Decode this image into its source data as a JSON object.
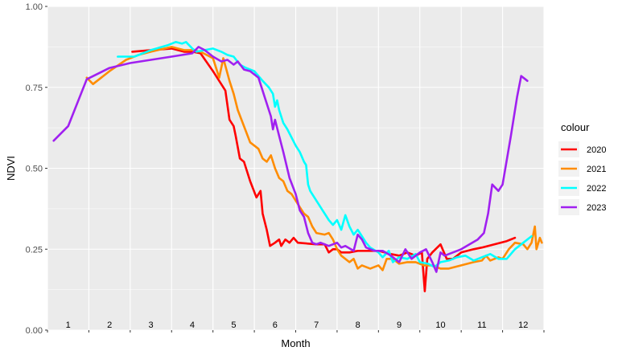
{
  "chart_data": {
    "type": "line",
    "xlabel": "Month",
    "ylabel": "NDVI",
    "ylim": [
      0,
      1
    ],
    "xlim": [
      0.5,
      12.5
    ],
    "y_ticks": [
      "0.00",
      "0.25",
      "0.50",
      "0.75",
      "1.00"
    ],
    "y_tick_values": [
      0,
      0.25,
      0.5,
      0.75,
      1.0
    ],
    "month_labels": [
      "1",
      "2",
      "3",
      "4",
      "5",
      "6",
      "7",
      "8",
      "9",
      "10",
      "11",
      "12"
    ],
    "month_label_values": [
      1,
      2,
      3,
      4,
      5,
      6,
      7,
      8,
      9,
      10,
      11,
      12
    ],
    "grid": true,
    "legend": {
      "title": "colour",
      "placement": "right"
    },
    "series": [
      {
        "name": "2020",
        "color": "#ff0000",
        "points": [
          [
            2.55,
            0.86
          ],
          [
            3.0,
            0.865
          ],
          [
            3.5,
            0.87
          ],
          [
            3.8,
            0.86
          ],
          [
            4.0,
            0.86
          ],
          [
            4.2,
            0.855
          ],
          [
            4.5,
            0.8
          ],
          [
            4.8,
            0.74
          ],
          [
            4.9,
            0.65
          ],
          [
            5.0,
            0.63
          ],
          [
            5.05,
            0.6
          ],
          [
            5.15,
            0.53
          ],
          [
            5.25,
            0.52
          ],
          [
            5.4,
            0.46
          ],
          [
            5.55,
            0.41
          ],
          [
            5.65,
            0.43
          ],
          [
            5.7,
            0.36
          ],
          [
            5.8,
            0.31
          ],
          [
            5.88,
            0.26
          ],
          [
            6.0,
            0.27
          ],
          [
            6.1,
            0.28
          ],
          [
            6.15,
            0.26
          ],
          [
            6.25,
            0.28
          ],
          [
            6.35,
            0.27
          ],
          [
            6.45,
            0.285
          ],
          [
            6.55,
            0.27
          ],
          [
            7.0,
            0.265
          ],
          [
            7.2,
            0.265
          ],
          [
            7.3,
            0.24
          ],
          [
            7.4,
            0.25
          ],
          [
            7.5,
            0.25
          ],
          [
            7.6,
            0.24
          ],
          [
            7.8,
            0.24
          ],
          [
            8.0,
            0.245
          ],
          [
            8.5,
            0.245
          ],
          [
            8.8,
            0.235
          ],
          [
            9.0,
            0.23
          ],
          [
            9.2,
            0.24
          ],
          [
            9.4,
            0.23
          ],
          [
            9.55,
            0.24
          ],
          [
            9.62,
            0.12
          ],
          [
            9.68,
            0.22
          ],
          [
            9.8,
            0.24
          ],
          [
            10.0,
            0.265
          ],
          [
            10.05,
            0.25
          ],
          [
            10.15,
            0.22
          ],
          [
            10.3,
            0.22
          ],
          [
            10.5,
            0.24
          ],
          [
            10.8,
            0.25
          ],
          [
            11.0,
            0.255
          ],
          [
            11.3,
            0.265
          ],
          [
            11.6,
            0.275
          ],
          [
            11.8,
            0.285
          ]
        ]
      },
      {
        "name": "2021",
        "color": "#ff8c00",
        "points": [
          [
            1.45,
            0.78
          ],
          [
            1.6,
            0.76
          ],
          [
            1.8,
            0.78
          ],
          [
            2.0,
            0.8
          ],
          [
            2.4,
            0.835
          ],
          [
            2.7,
            0.85
          ],
          [
            3.0,
            0.86
          ],
          [
            3.5,
            0.875
          ],
          [
            3.8,
            0.865
          ],
          [
            4.0,
            0.865
          ],
          [
            4.2,
            0.86
          ],
          [
            4.5,
            0.84
          ],
          [
            4.65,
            0.78
          ],
          [
            4.75,
            0.84
          ],
          [
            4.9,
            0.77
          ],
          [
            5.0,
            0.73
          ],
          [
            5.1,
            0.68
          ],
          [
            5.25,
            0.63
          ],
          [
            5.4,
            0.58
          ],
          [
            5.5,
            0.57
          ],
          [
            5.6,
            0.56
          ],
          [
            5.7,
            0.53
          ],
          [
            5.8,
            0.52
          ],
          [
            5.9,
            0.54
          ],
          [
            6.0,
            0.5
          ],
          [
            6.1,
            0.47
          ],
          [
            6.2,
            0.46
          ],
          [
            6.3,
            0.43
          ],
          [
            6.4,
            0.42
          ],
          [
            6.5,
            0.4
          ],
          [
            6.6,
            0.38
          ],
          [
            6.7,
            0.36
          ],
          [
            6.8,
            0.35
          ],
          [
            6.9,
            0.32
          ],
          [
            7.0,
            0.3
          ],
          [
            7.2,
            0.295
          ],
          [
            7.3,
            0.3
          ],
          [
            7.4,
            0.28
          ],
          [
            7.5,
            0.25
          ],
          [
            7.6,
            0.23
          ],
          [
            7.8,
            0.21
          ],
          [
            7.9,
            0.22
          ],
          [
            8.0,
            0.19
          ],
          [
            8.1,
            0.2
          ],
          [
            8.3,
            0.19
          ],
          [
            8.5,
            0.2
          ],
          [
            8.6,
            0.185
          ],
          [
            8.7,
            0.22
          ],
          [
            8.85,
            0.22
          ],
          [
            9.0,
            0.205
          ],
          [
            9.2,
            0.21
          ],
          [
            9.4,
            0.21
          ],
          [
            9.6,
            0.2
          ],
          [
            9.8,
            0.2
          ],
          [
            10.0,
            0.19
          ],
          [
            10.2,
            0.19
          ],
          [
            10.5,
            0.2
          ],
          [
            10.8,
            0.21
          ],
          [
            11.0,
            0.215
          ],
          [
            11.1,
            0.23
          ],
          [
            11.2,
            0.215
          ],
          [
            11.4,
            0.225
          ],
          [
            11.5,
            0.22
          ],
          [
            11.65,
            0.25
          ],
          [
            11.8,
            0.27
          ],
          [
            12.0,
            0.265
          ],
          [
            12.1,
            0.25
          ],
          [
            12.2,
            0.27
          ],
          [
            12.28,
            0.32
          ],
          [
            12.32,
            0.25
          ],
          [
            12.4,
            0.285
          ],
          [
            12.45,
            0.27
          ]
        ]
      },
      {
        "name": "2022",
        "color": "#00ffff",
        "points": [
          [
            2.2,
            0.845
          ],
          [
            2.6,
            0.845
          ],
          [
            3.0,
            0.865
          ],
          [
            3.4,
            0.88
          ],
          [
            3.6,
            0.89
          ],
          [
            3.75,
            0.885
          ],
          [
            3.85,
            0.89
          ],
          [
            4.0,
            0.87
          ],
          [
            4.1,
            0.86
          ],
          [
            4.3,
            0.865
          ],
          [
            4.5,
            0.87
          ],
          [
            4.7,
            0.86
          ],
          [
            4.85,
            0.85
          ],
          [
            5.0,
            0.845
          ],
          [
            5.15,
            0.82
          ],
          [
            5.3,
            0.81
          ],
          [
            5.5,
            0.8
          ],
          [
            5.7,
            0.77
          ],
          [
            5.85,
            0.75
          ],
          [
            5.95,
            0.73
          ],
          [
            6.0,
            0.69
          ],
          [
            6.05,
            0.71
          ],
          [
            6.1,
            0.68
          ],
          [
            6.2,
            0.64
          ],
          [
            6.3,
            0.62
          ],
          [
            6.5,
            0.57
          ],
          [
            6.6,
            0.55
          ],
          [
            6.7,
            0.52
          ],
          [
            6.75,
            0.51
          ],
          [
            6.8,
            0.45
          ],
          [
            6.85,
            0.43
          ],
          [
            7.0,
            0.4
          ],
          [
            7.15,
            0.37
          ],
          [
            7.25,
            0.35
          ],
          [
            7.3,
            0.34
          ],
          [
            7.4,
            0.325
          ],
          [
            7.5,
            0.34
          ],
          [
            7.6,
            0.31
          ],
          [
            7.7,
            0.355
          ],
          [
            7.8,
            0.32
          ],
          [
            7.9,
            0.295
          ],
          [
            8.0,
            0.31
          ],
          [
            8.1,
            0.29
          ],
          [
            8.2,
            0.27
          ],
          [
            8.3,
            0.255
          ],
          [
            8.5,
            0.24
          ],
          [
            8.6,
            0.225
          ],
          [
            8.75,
            0.245
          ],
          [
            8.85,
            0.21
          ],
          [
            9.0,
            0.225
          ],
          [
            9.2,
            0.22
          ],
          [
            9.4,
            0.235
          ],
          [
            9.5,
            0.21
          ],
          [
            9.7,
            0.205
          ],
          [
            9.85,
            0.195
          ],
          [
            10.0,
            0.21
          ],
          [
            10.2,
            0.215
          ],
          [
            10.4,
            0.225
          ],
          [
            10.6,
            0.23
          ],
          [
            10.8,
            0.215
          ],
          [
            11.0,
            0.225
          ],
          [
            11.2,
            0.235
          ],
          [
            11.4,
            0.22
          ],
          [
            11.6,
            0.22
          ],
          [
            11.8,
            0.25
          ],
          [
            12.0,
            0.27
          ],
          [
            12.2,
            0.29
          ]
        ]
      },
      {
        "name": "2023",
        "color": "#a020f0",
        "points": [
          [
            0.65,
            0.585
          ],
          [
            1.0,
            0.63
          ],
          [
            1.45,
            0.775
          ],
          [
            2.0,
            0.81
          ],
          [
            2.5,
            0.825
          ],
          [
            3.0,
            0.835
          ],
          [
            3.5,
            0.845
          ],
          [
            4.0,
            0.855
          ],
          [
            4.15,
            0.875
          ],
          [
            4.3,
            0.865
          ],
          [
            4.5,
            0.845
          ],
          [
            4.7,
            0.83
          ],
          [
            4.85,
            0.835
          ],
          [
            5.0,
            0.82
          ],
          [
            5.1,
            0.83
          ],
          [
            5.25,
            0.805
          ],
          [
            5.4,
            0.8
          ],
          [
            5.6,
            0.78
          ],
          [
            5.75,
            0.72
          ],
          [
            5.9,
            0.66
          ],
          [
            5.95,
            0.62
          ],
          [
            6.0,
            0.65
          ],
          [
            6.1,
            0.6
          ],
          [
            6.2,
            0.55
          ],
          [
            6.35,
            0.47
          ],
          [
            6.5,
            0.42
          ],
          [
            6.6,
            0.37
          ],
          [
            6.7,
            0.35
          ],
          [
            6.8,
            0.3
          ],
          [
            6.9,
            0.27
          ],
          [
            7.0,
            0.265
          ],
          [
            7.1,
            0.27
          ],
          [
            7.3,
            0.26
          ],
          [
            7.5,
            0.27
          ],
          [
            7.6,
            0.255
          ],
          [
            7.7,
            0.26
          ],
          [
            7.9,
            0.245
          ],
          [
            8.0,
            0.295
          ],
          [
            8.1,
            0.28
          ],
          [
            8.2,
            0.255
          ],
          [
            8.4,
            0.245
          ],
          [
            8.6,
            0.245
          ],
          [
            8.8,
            0.23
          ],
          [
            9.0,
            0.21
          ],
          [
            9.15,
            0.25
          ],
          [
            9.3,
            0.22
          ],
          [
            9.5,
            0.24
          ],
          [
            9.65,
            0.25
          ],
          [
            9.8,
            0.21
          ],
          [
            9.9,
            0.18
          ],
          [
            10.0,
            0.24
          ],
          [
            10.1,
            0.23
          ],
          [
            10.3,
            0.24
          ],
          [
            10.5,
            0.25
          ],
          [
            10.7,
            0.265
          ],
          [
            10.9,
            0.28
          ],
          [
            11.05,
            0.3
          ],
          [
            11.15,
            0.36
          ],
          [
            11.25,
            0.45
          ],
          [
            11.4,
            0.43
          ],
          [
            11.5,
            0.45
          ],
          [
            11.7,
            0.6
          ],
          [
            11.85,
            0.72
          ],
          [
            11.95,
            0.785
          ],
          [
            12.05,
            0.775
          ],
          [
            12.1,
            0.77
          ]
        ]
      }
    ]
  }
}
